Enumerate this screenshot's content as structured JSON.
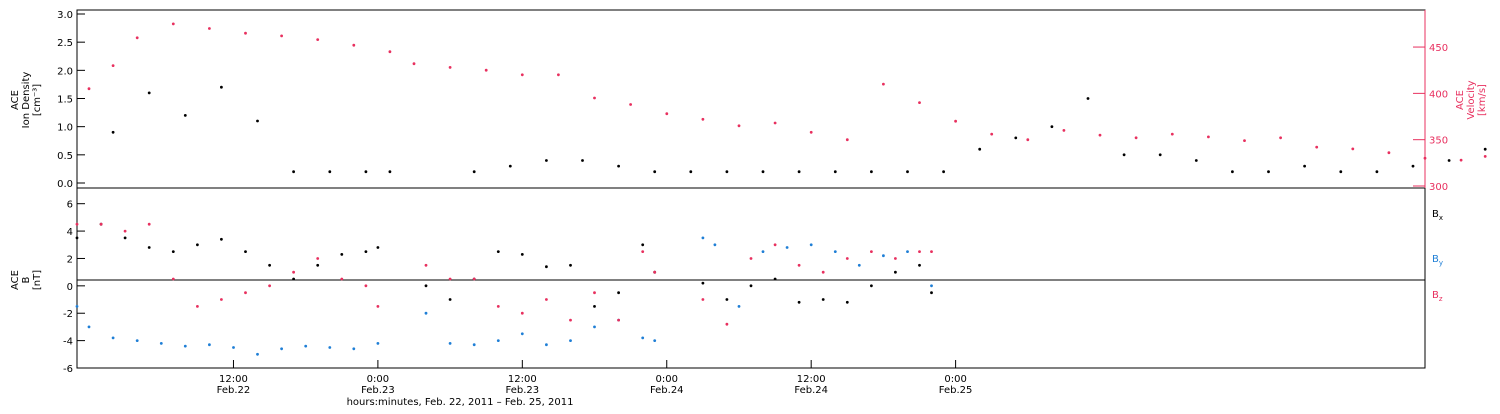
{
  "chart_data": [
    {
      "type": "scatter",
      "panel": "top",
      "ylabel_left": [
        "ACE",
        "Ion Density",
        "[cm⁻³]"
      ],
      "ylabel_right": [
        "ACE",
        "Velocity",
        "[km/s]"
      ],
      "ylim_left": [
        0,
        3.0
      ],
      "yticks_left": [
        "0.0",
        "0.5",
        "1.0",
        "1.5",
        "2.0",
        "2.5",
        "3.0"
      ],
      "ylim_right": [
        300,
        490
      ],
      "yticks_right": [
        "300",
        "350",
        "400",
        "450"
      ],
      "series": [
        {
          "name": "",
          "axis": "left",
          "color": "#000000",
          "x": [
            3,
            6,
            9,
            12,
            15,
            18,
            21,
            24,
            26,
            33,
            36,
            39,
            42,
            45,
            48,
            51,
            54,
            57,
            60,
            63,
            66,
            69,
            72,
            75,
            78,
            81,
            84,
            87,
            90,
            93,
            96,
            99,
            102,
            105,
            108,
            111,
            114,
            117
          ],
          "y": [
            0.9,
            1.6,
            1.2,
            1.7,
            1.1,
            0.2,
            0.2,
            0.2,
            0.2,
            0.2,
            0.3,
            0.4,
            0.4,
            0.3,
            0.2,
            0.2,
            0.2,
            0.2,
            0.2,
            0.2,
            0.2,
            0.2,
            0.2,
            0.6,
            0.8,
            1.0,
            1.5,
            0.5,
            0.5,
            0.4,
            0.2,
            0.2,
            0.3,
            0.2,
            0.2,
            0.3,
            0.4,
            0.6
          ]
        },
        {
          "name": "",
          "axis": "right",
          "color": "#e8305f",
          "x": [
            1,
            3,
            5,
            8,
            11,
            14,
            17,
            20,
            23,
            26,
            28,
            31,
            34,
            37,
            40,
            43,
            46,
            49,
            52,
            55,
            58,
            61,
            64,
            67,
            70,
            73,
            76,
            79,
            82,
            85,
            88,
            91,
            94,
            97,
            100,
            103,
            106,
            109,
            112,
            115,
            117
          ],
          "y": [
            405,
            430,
            460,
            475,
            470,
            465,
            462,
            458,
            452,
            445,
            432,
            428,
            425,
            420,
            420,
            395,
            388,
            378,
            372,
            365,
            368,
            358,
            350,
            410,
            390,
            370,
            356,
            350,
            360,
            355,
            352,
            356,
            353,
            349,
            352,
            342,
            340,
            336,
            330,
            328,
            332
          ]
        }
      ]
    },
    {
      "type": "scatter",
      "panel": "bottom",
      "ylabel": [
        "ACE",
        "B",
        "[nT]"
      ],
      "ylim": [
        -6,
        7
      ],
      "yticks": [
        "-6",
        "-4",
        "-2",
        "0",
        "2",
        "4",
        "6"
      ],
      "xlim": [
        0,
        112
      ],
      "xticks": [
        {
          "x": 13,
          "label": "12:00",
          "sublabel": "Feb.22"
        },
        {
          "x": 25,
          "label": "0:00",
          "sublabel": "Feb.23"
        },
        {
          "x": 37,
          "label": "12:00",
          "sublabel": "Feb.23"
        },
        {
          "x": 49,
          "label": "0:00",
          "sublabel": "Feb.24"
        },
        {
          "x": 61,
          "label": "12:00",
          "sublabel": "Feb.24"
        },
        {
          "x": 73,
          "label": "0:00",
          "sublabel": "Feb.25"
        }
      ],
      "xlabel": "hours:minutes, Feb. 22, 2011 – Feb. 25, 2011",
      "legend": [
        {
          "label": "B",
          "sub": "x",
          "color": "#000000"
        },
        {
          "label": "B",
          "sub": "y",
          "color": "#1f7fd6"
        },
        {
          "label": "B",
          "sub": "z",
          "color": "#e8305f"
        }
      ],
      "series": [
        {
          "name": "Bx",
          "color": "#000000",
          "x": [
            0,
            2,
            4,
            6,
            8,
            10,
            12,
            14,
            16,
            18,
            20,
            22,
            24,
            25,
            29,
            31,
            33,
            35,
            37,
            39,
            41,
            43,
            45,
            47,
            48,
            52,
            54,
            56,
            58,
            60,
            62,
            64,
            66,
            68,
            70,
            71
          ],
          "y": [
            3.5,
            4.5,
            3.5,
            2.8,
            2.5,
            3.0,
            3.4,
            2.5,
            1.5,
            0.5,
            1.5,
            2.3,
            2.5,
            2.8,
            0.0,
            -1.0,
            0.5,
            2.5,
            2.3,
            1.4,
            1.5,
            -1.5,
            -0.5,
            3.0,
            1.0,
            0.2,
            -1.0,
            0.0,
            0.5,
            -1.2,
            -1.0,
            -1.2,
            0.0,
            1.0,
            1.5,
            -0.5
          ]
        },
        {
          "name": "By",
          "color": "#1f7fd6",
          "x": [
            0,
            1,
            3,
            5,
            7,
            9,
            11,
            13,
            15,
            17,
            19,
            21,
            23,
            25,
            29,
            31,
            33,
            35,
            37,
            39,
            41,
            43,
            45,
            47,
            48,
            52,
            53,
            55,
            57,
            59,
            61,
            63,
            65,
            67,
            69,
            71
          ],
          "y": [
            -1.5,
            -3.0,
            -3.8,
            -4.0,
            -4.2,
            -4.4,
            -4.3,
            -4.5,
            -5.0,
            -4.6,
            -4.4,
            -4.5,
            -4.6,
            -4.2,
            -2.0,
            -4.2,
            -4.3,
            -4.0,
            -3.5,
            -4.3,
            -4.0,
            -3.0,
            -2.5,
            -3.8,
            -4.0,
            3.5,
            3.0,
            -1.5,
            2.5,
            2.8,
            3.0,
            2.5,
            1.5,
            2.2,
            2.5,
            0.0
          ]
        },
        {
          "name": "Bz",
          "color": "#e8305f",
          "x": [
            0,
            2,
            4,
            6,
            8,
            10,
            12,
            14,
            16,
            18,
            20,
            22,
            24,
            25,
            29,
            31,
            33,
            35,
            37,
            39,
            41,
            43,
            45,
            47,
            48,
            52,
            54,
            56,
            58,
            60,
            62,
            64,
            66,
            68,
            70,
            71
          ],
          "y": [
            4.5,
            4.5,
            4.0,
            4.5,
            0.5,
            -1.5,
            -1.0,
            -0.5,
            0.0,
            1.0,
            2.0,
            0.5,
            0.0,
            -1.5,
            1.5,
            0.5,
            0.5,
            -1.5,
            -2.0,
            -1.0,
            -2.5,
            -0.5,
            -2.5,
            2.5,
            1.0,
            -1.0,
            -2.8,
            2.0,
            3.0,
            1.5,
            1.0,
            2.0,
            2.5,
            2.0,
            2.5,
            2.5
          ]
        }
      ]
    }
  ]
}
